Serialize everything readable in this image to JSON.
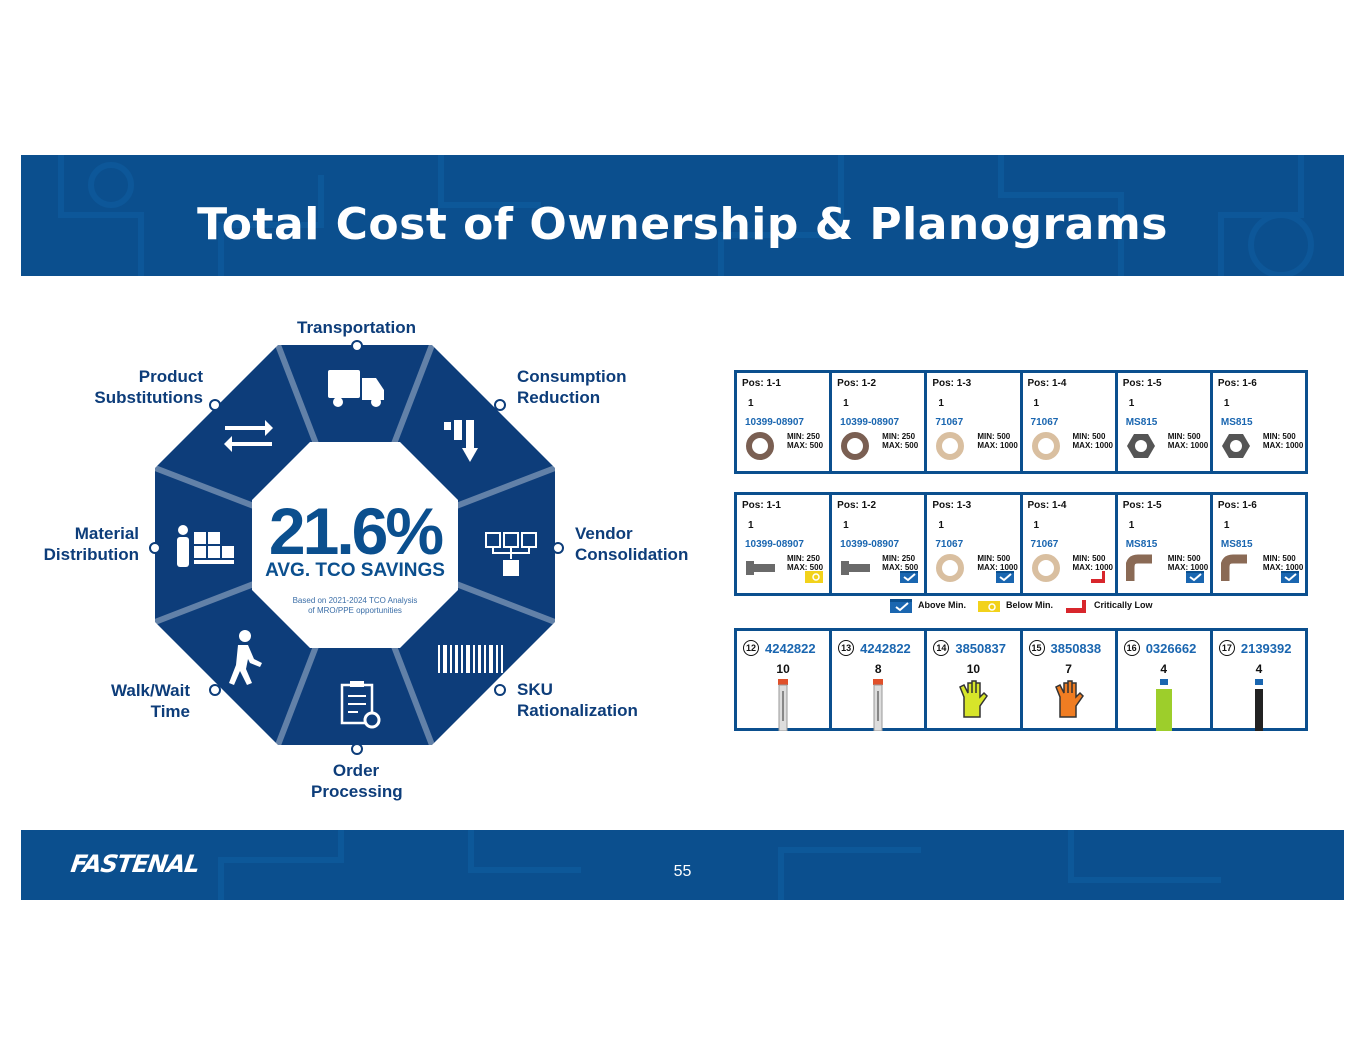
{
  "title": "Total Cost of Ownership & Planograms",
  "footer": {
    "logo": "FASTENAL",
    "page_number": "55"
  },
  "wheel": {
    "percent": "21.6%",
    "subtitle": "AVG. TCO SAVINGS",
    "note_line1": "Based on 2021-2024 TCO Analysis",
    "note_line2": "of MRO/PPE opportunities",
    "labels": {
      "transportation": "Transportation",
      "consumption_1": "Consumption",
      "consumption_2": "Reduction",
      "vendor_1": "Vendor",
      "vendor_2": "Consolidation",
      "sku_1": "SKU",
      "sku_2": "Rationalization",
      "order_1": "Order",
      "order_2": "Processing",
      "walk_1": "Walk/Wait",
      "walk_2": "Time",
      "material_1": "Material",
      "material_2": "Distribution",
      "product_1": "Product",
      "product_2": "Substitutions"
    }
  },
  "planogram_row1": [
    {
      "pos": "Pos: 1-1",
      "qty": "1",
      "part": "10399-08907",
      "min": "MIN: 250",
      "max": "MAX: 500",
      "icon": "washer-dark-icon"
    },
    {
      "pos": "Pos: 1-2",
      "qty": "1",
      "part": "10399-08907",
      "min": "MIN: 250",
      "max": "MAX: 500",
      "icon": "washer-dark-icon"
    },
    {
      "pos": "Pos: 1-3",
      "qty": "1",
      "part": "71067",
      "min": "MIN: 500",
      "max": "MAX: 1000",
      "icon": "washer-light-icon"
    },
    {
      "pos": "Pos: 1-4",
      "qty": "1",
      "part": "71067",
      "min": "MIN: 500",
      "max": "MAX: 1000",
      "icon": "washer-light-icon"
    },
    {
      "pos": "Pos: 1-5",
      "qty": "1",
      "part": "MS815",
      "min": "MIN: 500",
      "max": "MAX: 1000",
      "icon": "hex-nut-icon"
    },
    {
      "pos": "Pos: 1-6",
      "qty": "1",
      "part": "MS815",
      "min": "MIN: 500",
      "max": "MAX: 1000",
      "icon": "hex-nut-icon"
    }
  ],
  "planogram_row2": [
    {
      "pos": "Pos: 1-1",
      "qty": "1",
      "part": "10399-08907",
      "min": "MIN: 250",
      "max": "MAX: 500",
      "icon": "bolt-icon",
      "status": "below"
    },
    {
      "pos": "Pos: 1-2",
      "qty": "1",
      "part": "10399-08907",
      "min": "MIN: 250",
      "max": "MAX: 500",
      "icon": "bolt-icon",
      "status": "above"
    },
    {
      "pos": "Pos: 1-3",
      "qty": "1",
      "part": "71067",
      "min": "MIN: 500",
      "max": "MAX: 1000",
      "icon": "washer-light-icon",
      "status": "above"
    },
    {
      "pos": "Pos: 1-4",
      "qty": "1",
      "part": "71067",
      "min": "MIN: 500",
      "max": "MAX: 1000",
      "icon": "washer-light-icon",
      "status": "critical"
    },
    {
      "pos": "Pos: 1-5",
      "qty": "1",
      "part": "MS815",
      "min": "MIN: 500",
      "max": "MAX: 1000",
      "icon": "pipe-elbow-icon",
      "status": "above"
    },
    {
      "pos": "Pos: 1-6",
      "qty": "1",
      "part": "MS815",
      "min": "MIN: 500",
      "max": "MAX: 1000",
      "icon": "pipe-elbow-icon",
      "status": "above"
    }
  ],
  "legend": {
    "above": "Above Min.",
    "below": "Below Min.",
    "critical": "Critically Low"
  },
  "vending_row": [
    {
      "slot": "12",
      "sku": "4242822",
      "count": "10",
      "product": "blade-pack-icon"
    },
    {
      "slot": "13",
      "sku": "4242822",
      "count": "8",
      "product": "blade-pack-icon"
    },
    {
      "slot": "14",
      "sku": "3850837",
      "count": "10",
      "product": "yellow-glove-icon"
    },
    {
      "slot": "15",
      "sku": "3850838",
      "count": "7",
      "product": "orange-glove-icon"
    },
    {
      "slot": "16",
      "sku": "0326662",
      "count": "4",
      "product": "green-bottle-icon"
    },
    {
      "slot": "17",
      "sku": "2139392",
      "count": "4",
      "product": "black-marker-icon"
    }
  ],
  "colors": {
    "brand_blue": "#0b4f8e",
    "dark_blue": "#0d3d7a",
    "part_blue": "#1a66b0",
    "below_yellow": "#f2d21b",
    "critical_red": "#d8262c"
  }
}
